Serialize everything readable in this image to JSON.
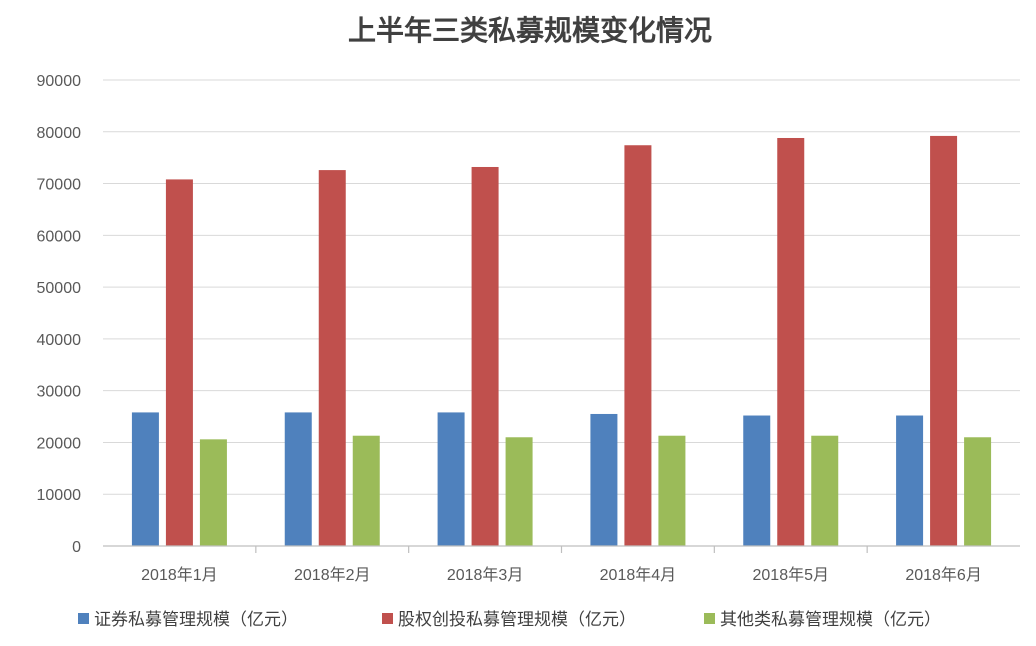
{
  "chart_data": {
    "type": "bar",
    "title": "上半年三类私募规模变化情况",
    "xlabel": "",
    "ylabel": "",
    "categories": [
      "2018年1月",
      "2018年2月",
      "2018年3月",
      "2018年4月",
      "2018年5月",
      "2018年6月"
    ],
    "series": [
      {
        "name": "证券私募管理规模（亿元）",
        "color": "#4f81bd",
        "values": [
          25800,
          25800,
          25800,
          25500,
          25200,
          25200
        ]
      },
      {
        "name": "股权创投私募管理规模（亿元）",
        "color": "#c0504d",
        "values": [
          70800,
          72600,
          73200,
          77400,
          78800,
          79200
        ]
      },
      {
        "name": "其他类私募管理规模（亿元）",
        "color": "#9bbb59",
        "values": [
          20600,
          21300,
          21000,
          21300,
          21300,
          21000
        ]
      }
    ],
    "ylim": [
      0,
      90000
    ],
    "yticks": [
      0,
      10000,
      20000,
      30000,
      40000,
      50000,
      60000,
      70000,
      80000,
      90000
    ],
    "grid": true,
    "legend_position": "bottom"
  }
}
